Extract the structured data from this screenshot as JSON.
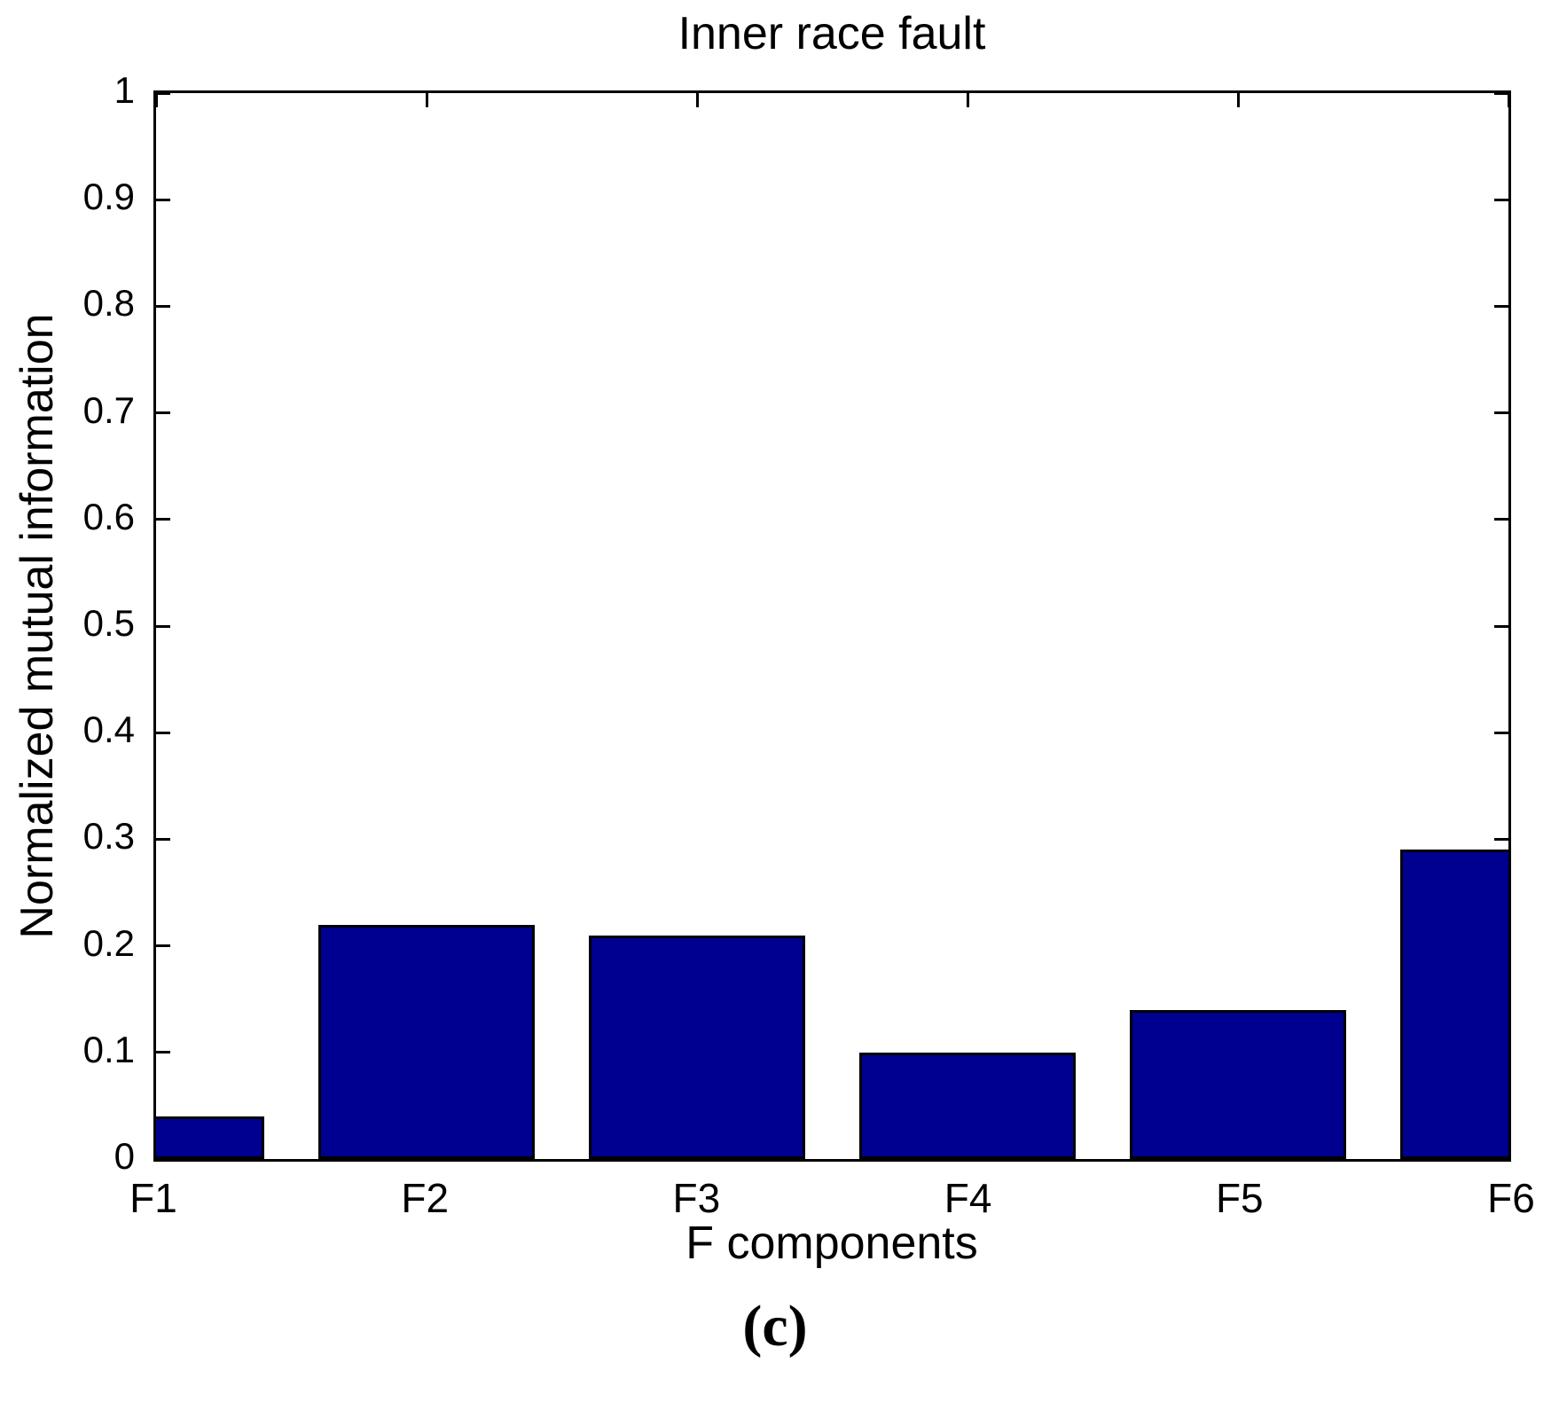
{
  "figure": {
    "caption": "(c)"
  },
  "chart_data": {
    "type": "bar",
    "title": "Inner race fault",
    "xlabel": "F components",
    "ylabel": "Normalized mutual information",
    "categories": [
      "F1",
      "F2",
      "F3",
      "F4",
      "F5",
      "F6"
    ],
    "values": [
      0.04,
      0.22,
      0.21,
      0.1,
      0.14,
      0.29
    ],
    "ylim": [
      0,
      1
    ],
    "yticks": [
      0,
      0.1,
      0.2,
      0.3,
      0.4,
      0.5,
      0.6,
      0.7,
      0.8,
      0.9,
      1
    ],
    "ytick_labels": [
      "0",
      "0.1",
      "0.2",
      "0.3",
      "0.4",
      "0.5",
      "0.6",
      "0.7",
      "0.8",
      "0.9",
      "1"
    ],
    "grid": false,
    "legend": "none",
    "bar_width_fraction": 0.8,
    "edge_bars_clipped_at_xlim": true,
    "tick_direction": "in",
    "box": true,
    "colors": {
      "bar_fill": "#000090",
      "bar_edge": "#000000",
      "axis": "#000000",
      "text": "#000000",
      "background": "#ffffff"
    }
  }
}
